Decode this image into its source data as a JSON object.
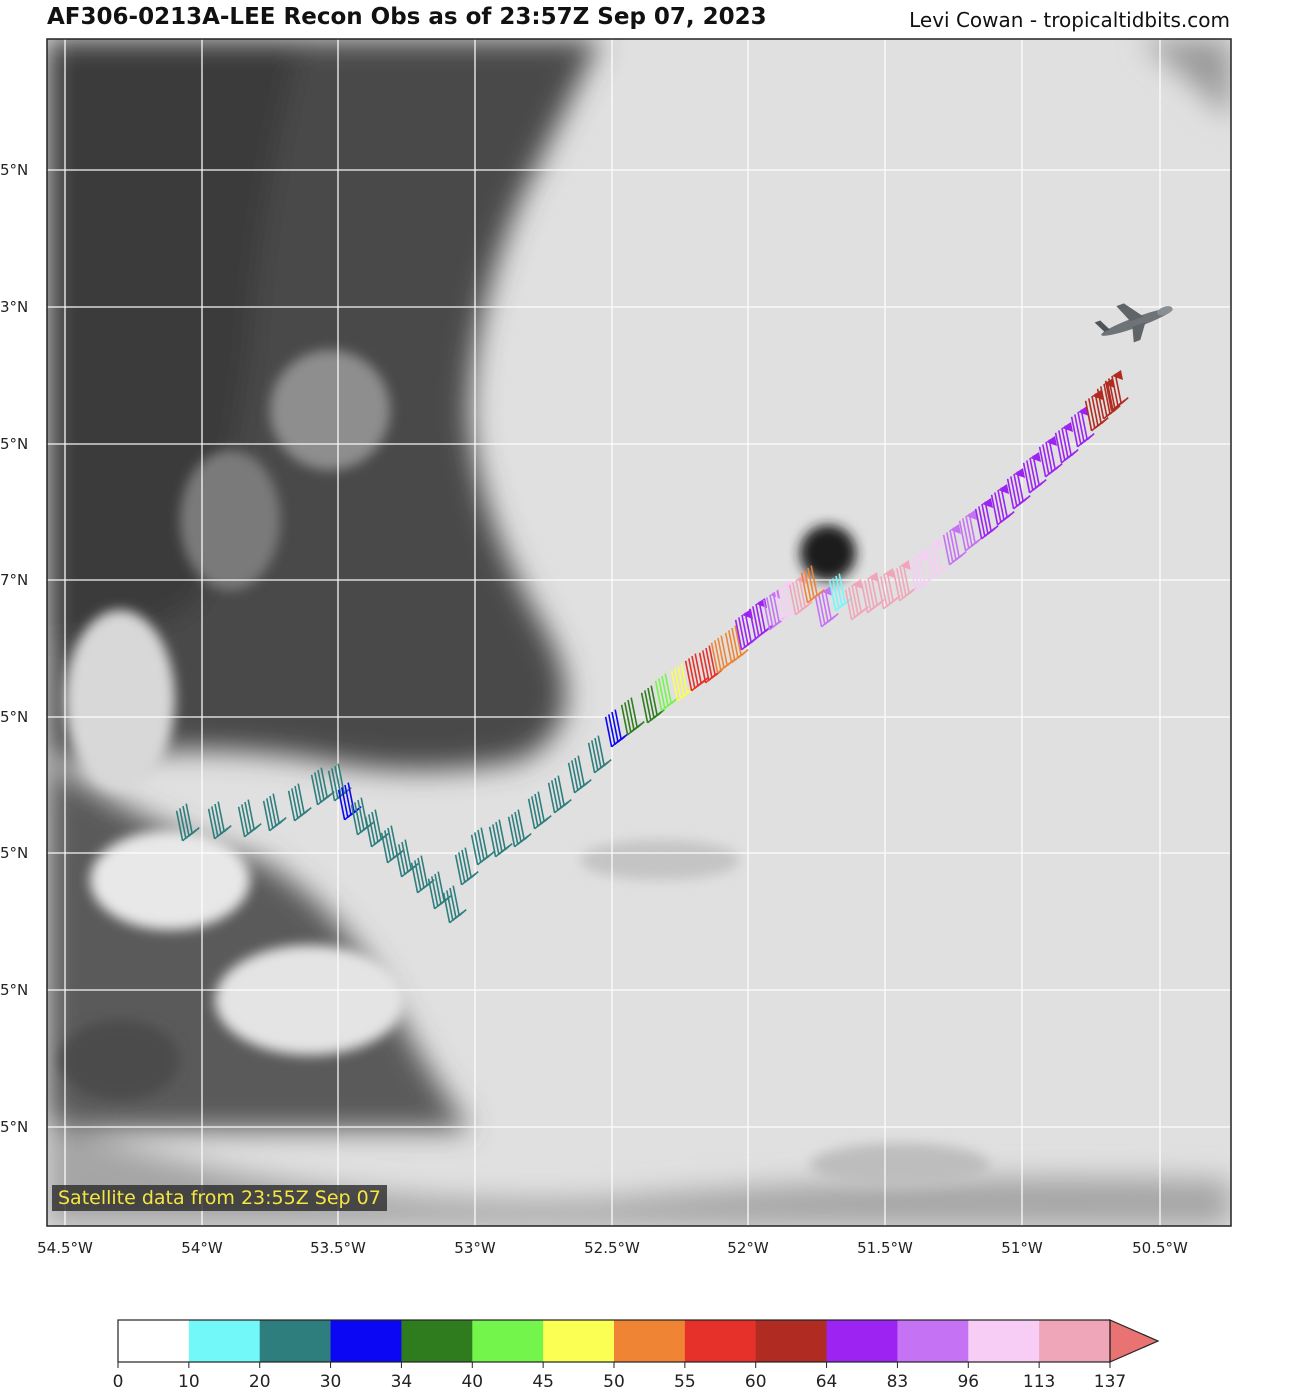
{
  "title": "AF306-0213A-LEE Recon Obs as of 23:57Z Sep 07, 2023",
  "credit": "Levi Cowan - tropicaltidbits.com",
  "satellite_note": "Satellite data from 23:55Z Sep 07",
  "lon_ticks": [
    "54.5°W",
    "54°W",
    "53.5°W",
    "53°W",
    "52.5°W",
    "52°W",
    "51.5°W",
    "51°W",
    "50.5°W"
  ],
  "lat_ticks": [
    "5°N",
    "3°N",
    "5°N",
    "7°N",
    "5°N",
    "5°N",
    "5°N",
    "5°N"
  ],
  "colorbar": {
    "colors": [
      "#ffffff",
      "#73f8f9",
      "#2f7e7e",
      "#0b07f4",
      "#2f7c1f",
      "#73f54c",
      "#fbfe53",
      "#ef8434",
      "#e6302a",
      "#b02b21",
      "#9c23f2",
      "#c672f4",
      "#f7cdf6",
      "#f0a6b9",
      "#e97373"
    ],
    "labels": [
      "0",
      "10",
      "20",
      "30",
      "34",
      "40",
      "45",
      "50",
      "55",
      "60",
      "64",
      "83",
      "96",
      "113",
      "137"
    ]
  },
  "icons": {
    "aircraft": "aircraft-icon"
  }
}
